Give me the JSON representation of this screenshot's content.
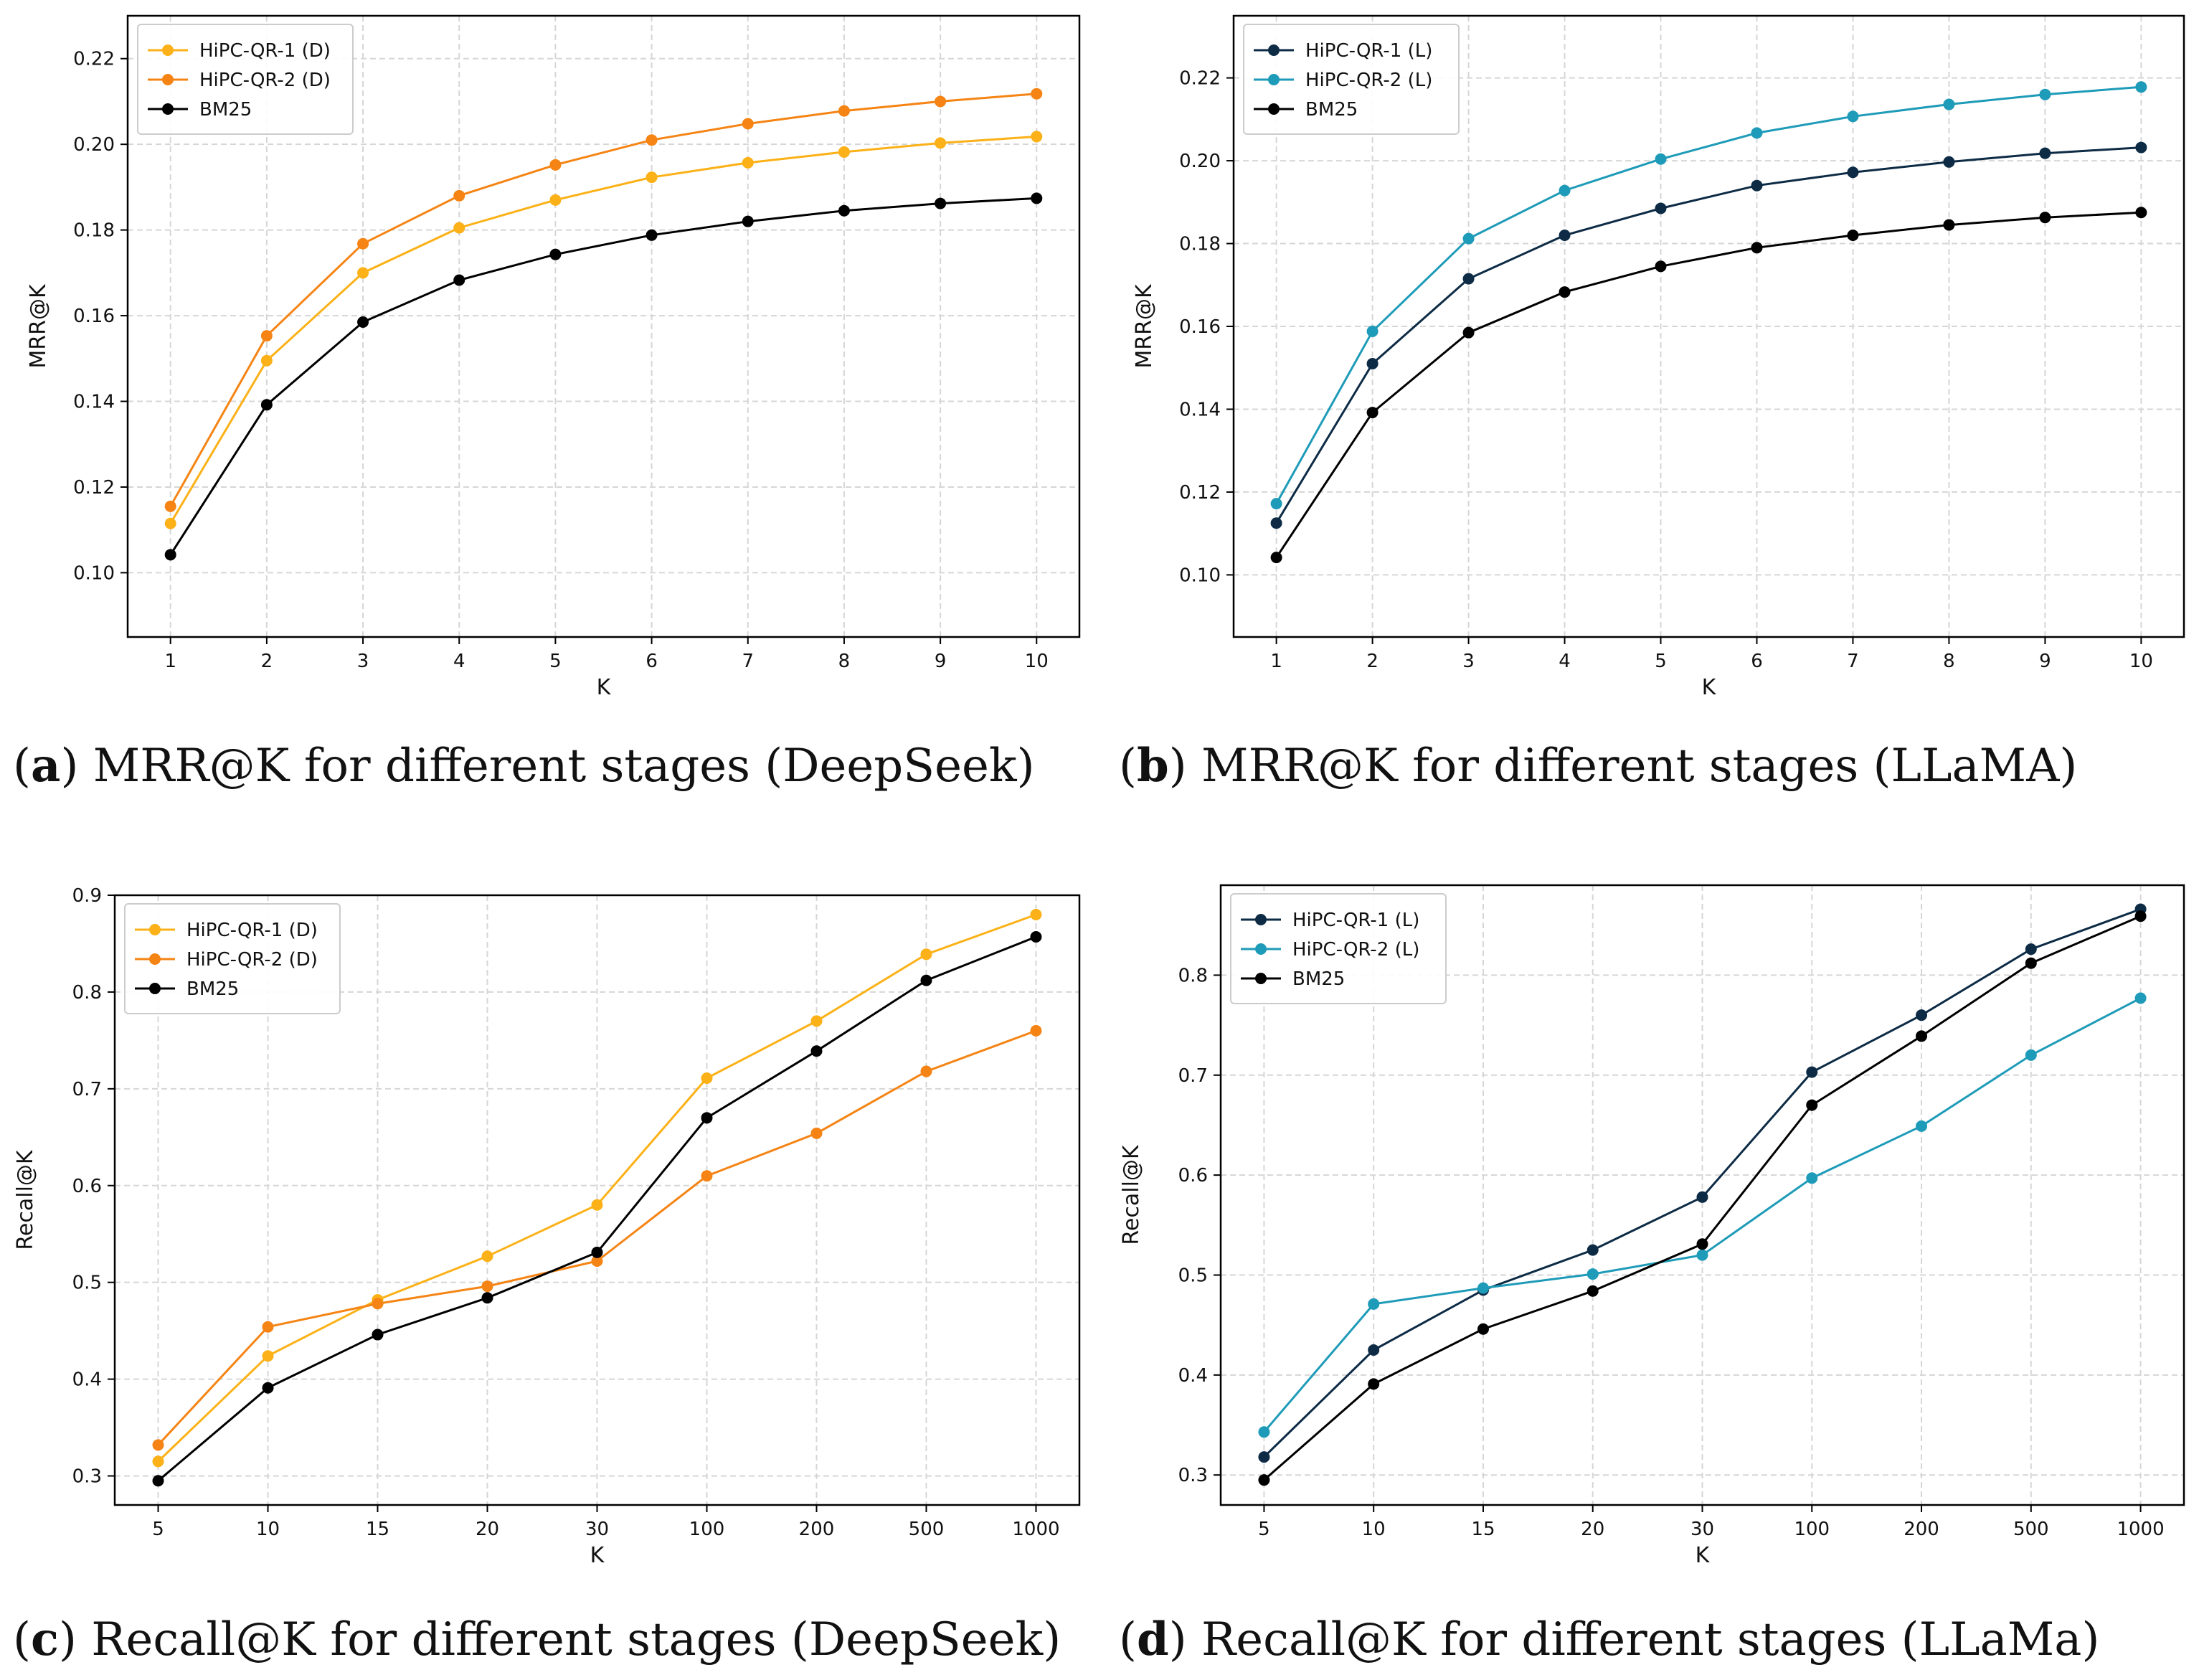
{
  "chart_data": [
    {
      "id": "a",
      "type": "line",
      "xlabel": "K",
      "ylabel": "MRR@K",
      "categories": [
        "1",
        "2",
        "3",
        "4",
        "5",
        "6",
        "7",
        "8",
        "9",
        "10"
      ],
      "ylim": [
        0.085,
        0.23
      ],
      "yticks": [
        "0.10",
        "0.12",
        "0.14",
        "0.16",
        "0.18",
        "0.20",
        "0.22"
      ],
      "grid": true,
      "legend_position": "top-left",
      "series": [
        {
          "name": "HiPC-QR-1 (D)",
          "color": "#FBB117",
          "values": [
            0.1115,
            0.1495,
            0.17,
            0.1805,
            0.187,
            0.1923,
            0.1957,
            0.1982,
            0.2003,
            0.2018
          ]
        },
        {
          "name": "HiPC-QR-2 (D)",
          "color": "#F58414",
          "values": [
            0.1155,
            0.1553,
            0.1768,
            0.188,
            0.1952,
            0.201,
            0.2048,
            0.2078,
            0.21,
            0.2118
          ]
        },
        {
          "name": "BM25",
          "color": "#000000",
          "values": [
            0.1042,
            0.1392,
            0.1585,
            0.1683,
            0.1743,
            0.1788,
            0.182,
            0.1845,
            0.1862,
            0.1874
          ]
        }
      ],
      "caption": {
        "letter": "a",
        "text": " MRR@K for different stages (DeepSeek)"
      }
    },
    {
      "id": "b",
      "type": "line",
      "xlabel": "K",
      "ylabel": "MRR@K",
      "categories": [
        "1",
        "2",
        "3",
        "4",
        "5",
        "6",
        "7",
        "8",
        "9",
        "10"
      ],
      "ylim": [
        0.085,
        0.235
      ],
      "yticks": [
        "0.10",
        "0.12",
        "0.14",
        "0.16",
        "0.18",
        "0.20",
        "0.22"
      ],
      "grid": true,
      "legend_position": "top-left",
      "series": [
        {
          "name": "HiPC-QR-1 (L)",
          "color": "#0D2B45",
          "values": [
            0.1125,
            0.151,
            0.1715,
            0.182,
            0.1885,
            0.194,
            0.1972,
            0.1997,
            0.2018,
            0.2032
          ]
        },
        {
          "name": "HiPC-QR-2 (L)",
          "color": "#1E9BB8",
          "values": [
            0.1172,
            0.1588,
            0.1812,
            0.1928,
            0.2004,
            0.2067,
            0.2107,
            0.2136,
            0.216,
            0.2178
          ]
        },
        {
          "name": "BM25",
          "color": "#000000",
          "values": [
            0.1042,
            0.1392,
            0.1585,
            0.1683,
            0.1745,
            0.179,
            0.182,
            0.1845,
            0.1863,
            0.1875
          ]
        }
      ],
      "caption": {
        "letter": "b",
        "text": " MRR@K for different stages (LLaMA)"
      }
    },
    {
      "id": "c",
      "type": "line",
      "xlabel": "K",
      "ylabel": "Recall@K",
      "categories": [
        "5",
        "10",
        "15",
        "20",
        "30",
        "100",
        "200",
        "500",
        "1000"
      ],
      "ylim": [
        0.27,
        0.9
      ],
      "yticks": [
        "0.3",
        "0.4",
        "0.5",
        "0.6",
        "0.7",
        "0.8",
        "0.9"
      ],
      "grid": true,
      "legend_position": "top-left",
      "series": [
        {
          "name": "HiPC-QR-1 (D)",
          "color": "#FBB117",
          "values": [
            0.315,
            0.424,
            0.482,
            0.527,
            0.58,
            0.711,
            0.77,
            0.839,
            0.88
          ]
        },
        {
          "name": "HiPC-QR-2 (D)",
          "color": "#F58414",
          "values": [
            0.332,
            0.454,
            0.478,
            0.496,
            0.522,
            0.61,
            0.654,
            0.718,
            0.76
          ]
        },
        {
          "name": "BM25",
          "color": "#000000",
          "values": [
            0.295,
            0.391,
            0.446,
            0.484,
            0.531,
            0.67,
            0.739,
            0.812,
            0.857
          ]
        }
      ],
      "caption": {
        "letter": "c",
        "text": " Recall@K for different stages (DeepSeek)"
      }
    },
    {
      "id": "d",
      "type": "line",
      "xlabel": "K",
      "ylabel": "Recall@K",
      "categories": [
        "5",
        "10",
        "15",
        "20",
        "30",
        "100",
        "200",
        "500",
        "1000"
      ],
      "ylim": [
        0.27,
        0.89
      ],
      "yticks": [
        "0.3",
        "0.4",
        "0.5",
        "0.6",
        "0.7",
        "0.8"
      ],
      "grid": true,
      "legend_position": "top-left",
      "series": [
        {
          "name": "HiPC-QR-1 (L)",
          "color": "#0D2B45",
          "values": [
            0.318,
            0.425,
            0.485,
            0.525,
            0.578,
            0.703,
            0.76,
            0.826,
            0.866
          ]
        },
        {
          "name": "HiPC-QR-2 (L)",
          "color": "#1E9BB8",
          "values": [
            0.343,
            0.471,
            0.487,
            0.501,
            0.52,
            0.597,
            0.649,
            0.72,
            0.777
          ]
        },
        {
          "name": "BM25",
          "color": "#000000",
          "values": [
            0.295,
            0.391,
            0.446,
            0.484,
            0.531,
            0.67,
            0.739,
            0.812,
            0.859
          ]
        }
      ],
      "caption": {
        "letter": "d",
        "text": " Recall@K for different stages (LLaMa)"
      }
    }
  ]
}
